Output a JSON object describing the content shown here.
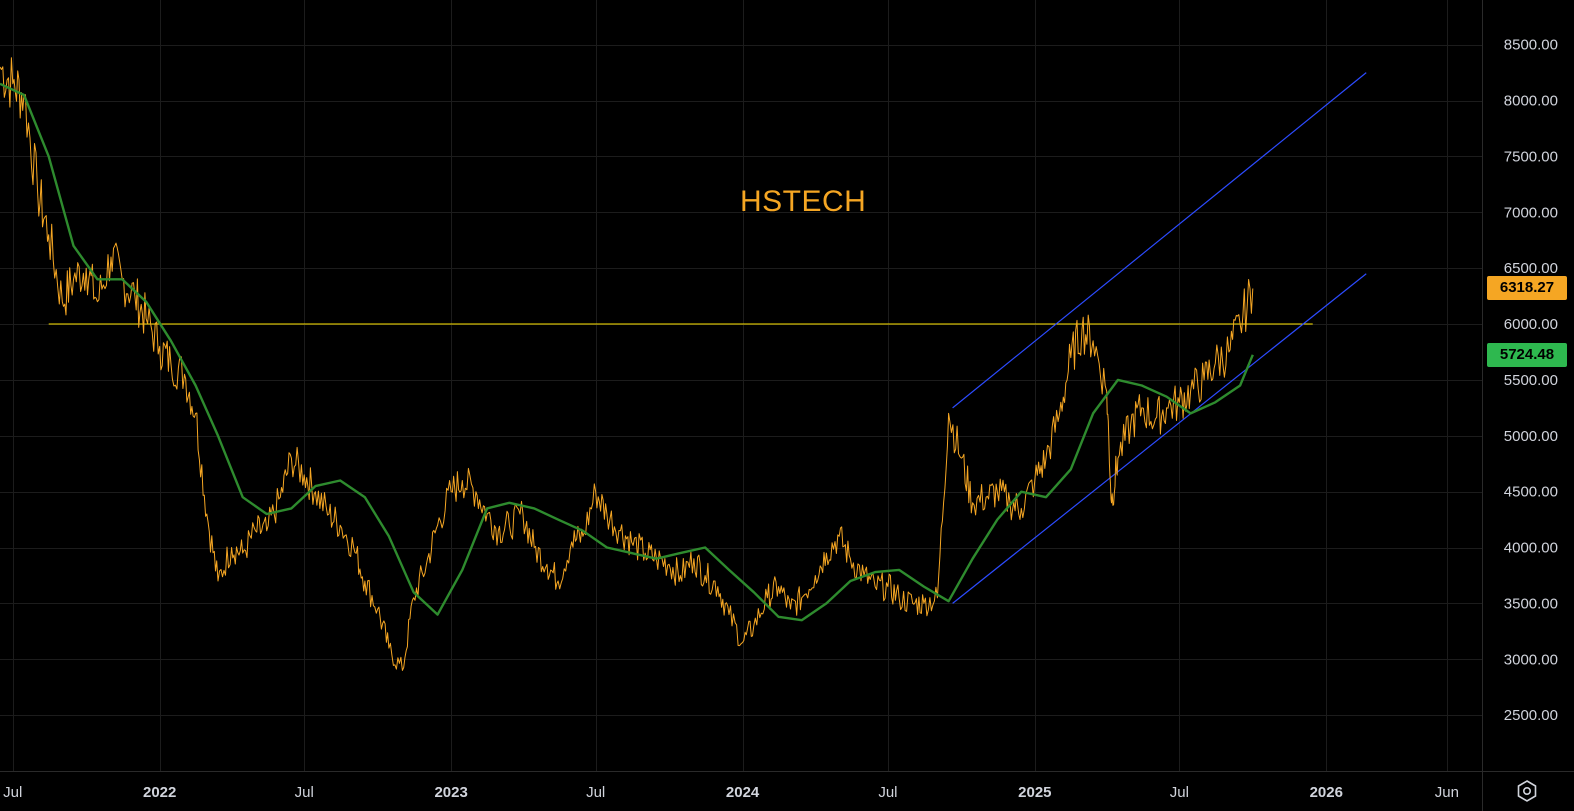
{
  "chart_title": "HSTECH",
  "last_price_label": "6318.27",
  "ma_price_label": "5724.48",
  "colors": {
    "background": "#000000",
    "price": "#f5a623",
    "ma": "#2e8b2e",
    "horizontal_line": "#ffe400",
    "channel": "#2c4bff",
    "grid": "#1c1c1c",
    "axis_text": "#d1d4dc",
    "ma_tag": "#2eb84f"
  },
  "x_axis_labels": [
    "Jul",
    "2022",
    "Jul",
    "2023",
    "Jul",
    "2024",
    "Jul",
    "2025",
    "Jul",
    "2026",
    "Jun"
  ],
  "y_axis_labels": [
    "8500.00",
    "8000.00",
    "7500.00",
    "7000.00",
    "6500.00",
    "6000.00",
    "5500.00",
    "5000.00",
    "4500.00",
    "4000.00",
    "3500.00",
    "3000.00",
    "2500.00"
  ],
  "settings_icon": "hexagon-gear-icon",
  "chart_data": {
    "type": "line",
    "title": "HSTECH",
    "x_unit": "date",
    "ylim": [
      2000,
      8900
    ],
    "xlim": [
      "2021-06-15",
      "2026-07-15"
    ],
    "grid": true,
    "y_axis_position": "right",
    "x_tick_dates": [
      "2021-07-01",
      "2022-01-01",
      "2022-07-01",
      "2023-01-01",
      "2023-07-01",
      "2024-01-01",
      "2024-07-01",
      "2025-01-01",
      "2025-07-01",
      "2026-01-01",
      "2026-06-01"
    ],
    "y_ticks": [
      2500,
      3000,
      3500,
      4000,
      4500,
      5000,
      5500,
      6000,
      6500,
      7000,
      7500,
      8000,
      8500
    ],
    "series": [
      {
        "kind": "price",
        "x": [
          "2021-06-15",
          "2021-07-01",
          "2021-07-15",
          "2021-08-01",
          "2021-08-15",
          "2021-09-01",
          "2021-09-15",
          "2021-10-01",
          "2021-10-15",
          "2021-11-01",
          "2021-11-15",
          "2021-12-01",
          "2021-12-15",
          "2022-01-01",
          "2022-01-15",
          "2022-02-01",
          "2022-02-15",
          "2022-03-01",
          "2022-03-15",
          "2022-04-01",
          "2022-04-15",
          "2022-05-01",
          "2022-05-15",
          "2022-06-01",
          "2022-06-15",
          "2022-07-01",
          "2022-07-15",
          "2022-08-01",
          "2022-08-15",
          "2022-09-01",
          "2022-09-15",
          "2022-10-01",
          "2022-10-15",
          "2022-11-01",
          "2022-11-15",
          "2022-12-01",
          "2022-12-15",
          "2023-01-01",
          "2023-01-15",
          "2023-02-01",
          "2023-02-15",
          "2023-03-01",
          "2023-03-15",
          "2023-04-01",
          "2023-04-15",
          "2023-05-01",
          "2023-05-15",
          "2023-06-01",
          "2023-06-15",
          "2023-07-01",
          "2023-07-15",
          "2023-08-01",
          "2023-08-15",
          "2023-09-01",
          "2023-09-15",
          "2023-10-01",
          "2023-10-15",
          "2023-11-01",
          "2023-11-15",
          "2023-12-01",
          "2023-12-15",
          "2024-01-01",
          "2024-01-15",
          "2024-02-01",
          "2024-02-15",
          "2024-03-01",
          "2024-03-15",
          "2024-04-01",
          "2024-04-15",
          "2024-05-01",
          "2024-05-15",
          "2024-06-01",
          "2024-06-15",
          "2024-07-01",
          "2024-07-15",
          "2024-08-01",
          "2024-08-15",
          "2024-09-01",
          "2024-09-15",
          "2024-10-01",
          "2024-10-15",
          "2024-11-01",
          "2024-11-15",
          "2024-12-01",
          "2024-12-15",
          "2025-01-01",
          "2025-01-15",
          "2025-02-01",
          "2025-02-15",
          "2025-03-01",
          "2025-03-15",
          "2025-04-01",
          "2025-04-07",
          "2025-04-15",
          "2025-05-01",
          "2025-05-15",
          "2025-06-01",
          "2025-06-15",
          "2025-07-01",
          "2025-07-15",
          "2025-08-01",
          "2025-08-15",
          "2025-09-01",
          "2025-09-15",
          "2025-10-01"
        ],
        "y": [
          8300,
          8150,
          8050,
          7200,
          6800,
          6200,
          6400,
          6500,
          6200,
          6600,
          6400,
          6250,
          6050,
          5800,
          5650,
          5550,
          5200,
          4300,
          3700,
          4000,
          3950,
          4150,
          4150,
          4450,
          4800,
          4650,
          4500,
          4300,
          4200,
          4000,
          3700,
          3450,
          3100,
          2900,
          3550,
          3850,
          4200,
          4500,
          4600,
          4500,
          4300,
          4150,
          4200,
          4300,
          4000,
          3850,
          3700,
          4050,
          4100,
          4500,
          4300,
          4150,
          4050,
          3950,
          3900,
          3850,
          3750,
          3900,
          3750,
          3650,
          3400,
          3150,
          3300,
          3550,
          3650,
          3450,
          3550,
          3750,
          3950,
          4100,
          3900,
          3750,
          3650,
          3650,
          3550,
          3500,
          3500,
          3550,
          5200,
          4800,
          4400,
          4450,
          4500,
          4400,
          4350,
          4600,
          4800,
          5200,
          5700,
          5950,
          5850,
          5400,
          4400,
          4800,
          5100,
          5250,
          5150,
          5250,
          5300,
          5400,
          5500,
          5650,
          5750,
          6000,
          6318.27
        ]
      },
      {
        "kind": "moving_average",
        "x": [
          "2021-06-15",
          "2021-07-15",
          "2021-08-15",
          "2021-09-15",
          "2021-10-15",
          "2021-11-15",
          "2021-12-15",
          "2022-01-15",
          "2022-02-15",
          "2022-03-15",
          "2022-04-15",
          "2022-05-15",
          "2022-06-15",
          "2022-07-15",
          "2022-08-15",
          "2022-09-15",
          "2022-10-15",
          "2022-11-15",
          "2022-12-15",
          "2023-01-15",
          "2023-02-15",
          "2023-03-15",
          "2023-04-15",
          "2023-05-15",
          "2023-06-15",
          "2023-07-15",
          "2023-08-15",
          "2023-09-15",
          "2023-10-15",
          "2023-11-15",
          "2023-12-15",
          "2024-01-15",
          "2024-02-15",
          "2024-03-15",
          "2024-04-15",
          "2024-05-15",
          "2024-06-15",
          "2024-07-15",
          "2024-08-15",
          "2024-09-15",
          "2024-10-15",
          "2024-11-15",
          "2024-12-15",
          "2025-01-15",
          "2025-02-15",
          "2025-03-15",
          "2025-04-15",
          "2025-05-15",
          "2025-06-15",
          "2025-07-15",
          "2025-08-15",
          "2025-09-15",
          "2025-10-01"
        ],
        "y": [
          8150,
          8050,
          7500,
          6700,
          6400,
          6400,
          6200,
          5850,
          5450,
          5000,
          4450,
          4300,
          4350,
          4550,
          4600,
          4450,
          4100,
          3600,
          3400,
          3800,
          4350,
          4400,
          4350,
          4250,
          4150,
          4000,
          3950,
          3900,
          3950,
          4000,
          3800,
          3600,
          3380,
          3350,
          3500,
          3700,
          3780,
          3800,
          3650,
          3520,
          3900,
          4250,
          4500,
          4450,
          4700,
          5200,
          5500,
          5450,
          5350,
          5200,
          5300,
          5450,
          5724.48
        ]
      }
    ],
    "reference_lines": [
      {
        "kind": "horizontal",
        "y": 6000,
        "x_start": "2021-08-15",
        "x_end": "2025-12-15"
      },
      {
        "kind": "channel-upper",
        "x": [
          "2024-09-20",
          "2026-02-20"
        ],
        "y": [
          5250,
          8250
        ]
      },
      {
        "kind": "channel-lower",
        "x": [
          "2024-09-20",
          "2026-02-20"
        ],
        "y": [
          3500,
          6450
        ]
      }
    ]
  }
}
